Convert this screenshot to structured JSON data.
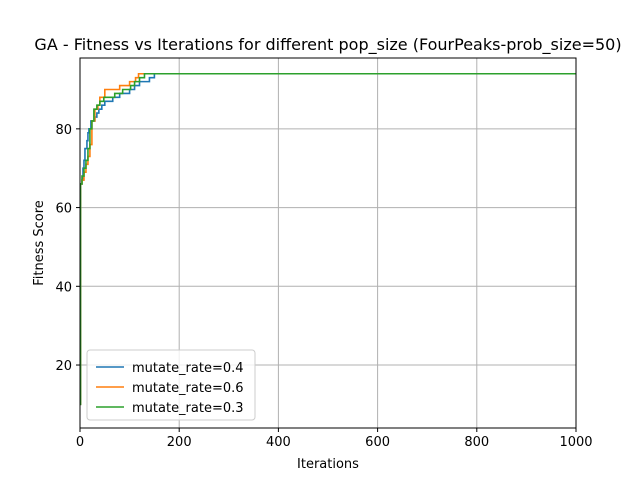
{
  "chart_data": {
    "type": "line",
    "title": "GA - Fitness vs Iterations for different pop_size (FourPeaks-prob_size=50)",
    "xlabel": "Iterations",
    "ylabel": "Fitness Score",
    "xlim": [
      0,
      1000
    ],
    "ylim": [
      4,
      98
    ],
    "xticks": [
      0,
      200,
      400,
      600,
      800,
      1000
    ],
    "yticks": [
      20,
      40,
      60,
      80
    ],
    "grid": true,
    "legend_position": "lower-left",
    "series": [
      {
        "name": "mutate_rate=0.4",
        "color": "#1f77b4",
        "x": [
          0,
          1,
          2,
          4,
          6,
          8,
          10,
          12,
          14,
          16,
          18,
          20,
          22,
          26,
          30,
          34,
          38,
          44,
          50,
          58,
          66,
          72,
          80,
          90,
          100,
          110,
          120,
          130,
          140,
          150,
          1000
        ],
        "y": [
          10,
          66,
          66,
          67,
          70,
          72,
          75,
          75,
          77,
          79,
          80,
          80,
          82,
          82,
          83,
          84,
          85,
          86,
          87,
          87,
          88,
          88,
          89,
          89,
          90,
          91,
          92,
          92,
          93,
          94,
          94
        ]
      },
      {
        "name": "mutate_rate=0.6",
        "color": "#ff7f0e",
        "x": [
          0,
          1,
          4,
          8,
          12,
          16,
          20,
          24,
          30,
          36,
          40,
          46,
          50,
          56,
          64,
          70,
          80,
          90,
          100,
          106,
          112,
          118,
          1000
        ],
        "y": [
          10,
          66,
          67,
          69,
          71,
          73,
          76,
          82,
          85,
          86,
          88,
          88,
          90,
          90,
          90,
          90,
          91,
          91,
          92,
          92,
          93,
          94,
          94
        ]
      },
      {
        "name": "mutate_rate=0.3",
        "color": "#2ca02c",
        "x": [
          0,
          1,
          4,
          8,
          12,
          16,
          20,
          24,
          28,
          34,
          40,
          48,
          56,
          62,
          70,
          78,
          86,
          94,
          102,
          110,
          120,
          130,
          140,
          1000
        ],
        "y": [
          10,
          66,
          68,
          70,
          72,
          75,
          80,
          82,
          85,
          86,
          87,
          88,
          88,
          88,
          89,
          89,
          90,
          90,
          91,
          92,
          93,
          94,
          94,
          94
        ]
      }
    ]
  }
}
